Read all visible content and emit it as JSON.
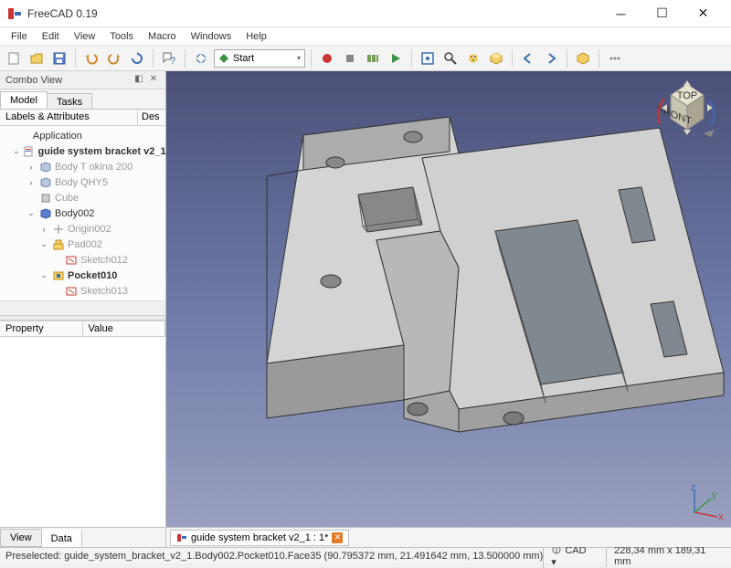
{
  "app": {
    "title": "FreeCAD 0.19"
  },
  "menus": [
    "File",
    "Edit",
    "View",
    "Tools",
    "Macro",
    "Windows",
    "Help"
  ],
  "toolbar": {
    "start_label": "Start",
    "icons": [
      "new",
      "open",
      "save",
      "sep",
      "undo",
      "redo",
      "refresh",
      "sep",
      "link",
      "sep",
      "wb",
      "start-combo",
      "sep",
      "rec",
      "stop",
      "macros",
      "play",
      "sep",
      "whatsthis",
      "zoom",
      "viewfit",
      "draw",
      "sep",
      "nav-l",
      "nav-r",
      "sep",
      "box",
      "sep",
      "more"
    ]
  },
  "combo": {
    "title": "Combo View",
    "tabs": [
      "Model",
      "Tasks"
    ],
    "tree_header": {
      "left": "Labels & Attributes",
      "right": "Des"
    },
    "tree": [
      {
        "label": "Application",
        "indent": 0,
        "toggle": "",
        "icon": "none",
        "style": ""
      },
      {
        "label": "guide system bracket v2_1",
        "indent": 1,
        "toggle": "v",
        "icon": "doc",
        "style": "bold"
      },
      {
        "label": "Body T okina 200",
        "indent": 2,
        "toggle": ">",
        "icon": "body",
        "style": "grey"
      },
      {
        "label": "Body QHY5",
        "indent": 2,
        "toggle": ">",
        "icon": "body",
        "style": "grey"
      },
      {
        "label": "Cube",
        "indent": 2,
        "toggle": "",
        "icon": "cube",
        "style": "grey"
      },
      {
        "label": "Body002",
        "indent": 2,
        "toggle": "v",
        "icon": "body-active",
        "style": ""
      },
      {
        "label": "Origin002",
        "indent": 3,
        "toggle": ">",
        "icon": "origin",
        "style": "grey"
      },
      {
        "label": "Pad002",
        "indent": 3,
        "toggle": "v",
        "icon": "pad",
        "style": "grey"
      },
      {
        "label": "Sketch012",
        "indent": 4,
        "toggle": "",
        "icon": "sketch",
        "style": "grey"
      },
      {
        "label": "Pocket010",
        "indent": 3,
        "toggle": "v",
        "icon": "pocket",
        "style": "bold"
      },
      {
        "label": "Sketch013",
        "indent": 4,
        "toggle": "",
        "icon": "sketch",
        "style": "grey"
      }
    ],
    "prop_header": {
      "left": "Property",
      "right": "Value"
    },
    "bottom_tabs": [
      "View",
      "Data"
    ]
  },
  "doc_tab": {
    "label": "guide system bracket v2_1 : 1*"
  },
  "navcube": {
    "top": "TOP",
    "front": "FRONT"
  },
  "status": {
    "left": "Preselected: guide_system_bracket_v2_1.Body002.Pocket010.Face35 (90.795372 mm, 21.491642 mm, 13.500000 mm)",
    "cad": "CAD",
    "dims": "228,34 mm x 189,31 mm"
  },
  "colors": {
    "viewport_top": "#4a5078",
    "viewport_bottom": "#9da3c1",
    "model_face": "#c8c8c8",
    "model_dark": "#a8a8a8",
    "model_light": "#e0e0e0",
    "edge": "#333333",
    "accent_blue": "#3b6db5",
    "accent_green": "#3a9448",
    "accent_red": "#cc3333",
    "accent_orange": "#e37c2a"
  }
}
